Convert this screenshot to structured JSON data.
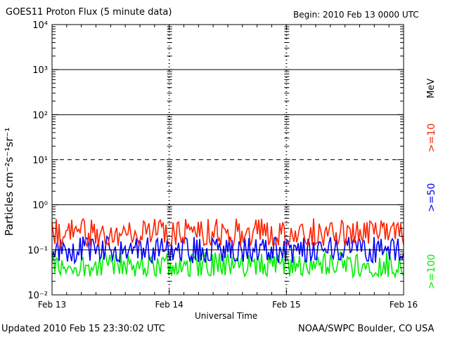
{
  "header": {
    "title": "GOES11 Proton Flux (5 minute data)",
    "begin": "Begin: 2010 Feb 13 0000 UTC"
  },
  "footer": {
    "updated": "Updated 2010 Feb 15 23:30:02 UTC",
    "credit": "NOAA/SWPC Boulder, CO USA"
  },
  "chart_data": {
    "type": "line",
    "title": "GOES11 Proton Flux (5 minute data)",
    "xlabel": "Universal Time",
    "ylabel": "Particles cm⁻²s⁻¹sr⁻¹",
    "y_scale": "log",
    "ylim": [
      0.01,
      10000
    ],
    "xlim": [
      "2010-02-13",
      "2010-02-16"
    ],
    "x_ticks": [
      "Feb 13",
      "Feb 14",
      "Feb 15",
      "Feb 16"
    ],
    "y_ticks": [
      "10⁻²",
      "10⁻¹",
      "10⁰",
      "10¹",
      "10²",
      "10³",
      "10⁴"
    ],
    "y_ticks_values": [
      0.01,
      0.1,
      1,
      10,
      100,
      1000,
      10000
    ],
    "energy_unit": "MeV",
    "reference_lines": [
      {
        "value": 10,
        "style": "dashed"
      },
      {
        "value": 100,
        "style": "solid"
      },
      {
        "value": 1000,
        "style": "solid"
      },
      {
        "value": 1,
        "style": "solid"
      },
      {
        "value": 0.1,
        "style": "solid"
      }
    ],
    "series": [
      {
        "name": ">=10",
        "color": "#ff2200",
        "range": [
          0.12,
          0.5
        ],
        "typical": 0.22
      },
      {
        "name": ">=50",
        "color": "#0000ff",
        "range": [
          0.05,
          0.2
        ],
        "typical": 0.1
      },
      {
        "name": ">=100",
        "color": "#00ee00",
        "range": [
          0.025,
          0.09
        ],
        "typical": 0.045
      }
    ]
  }
}
